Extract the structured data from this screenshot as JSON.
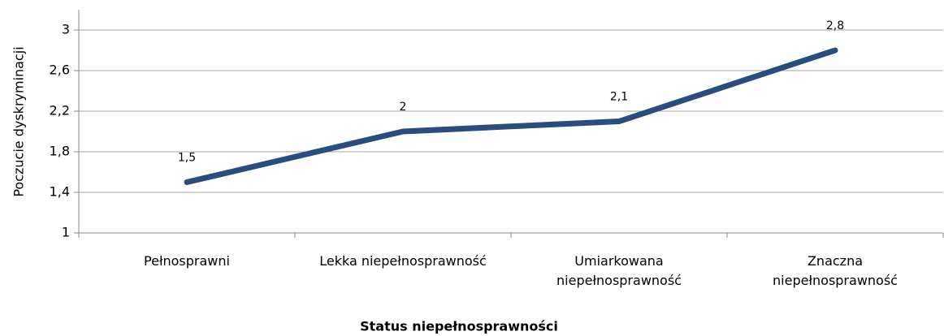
{
  "chart_data": {
    "type": "line",
    "categories": [
      "Pełnosprawni",
      "Lekka niepełnosprawność",
      "Umiarkowana\nniepełnosprawność",
      "Znaczna\nniepełnosprawność"
    ],
    "values": [
      1.5,
      2,
      2.1,
      2.8
    ],
    "value_labels": [
      "1,5",
      "2",
      "2,1",
      "2,8"
    ],
    "color": "#2a4d7f",
    "ylim": [
      1,
      3.2
    ],
    "yticks": [
      1,
      {
        "value": 1.4,
        "label": "1,4"
      },
      {
        "value": 1.8,
        "label": "1,8"
      },
      {
        "value": 2.2,
        "label": "2,2"
      },
      {
        "value": 2.6,
        "label": "2,6"
      },
      3
    ],
    "grid": true,
    "y_label": "Poczucie dyskryminacji",
    "x_label": "Status niepełnosprawności"
  }
}
